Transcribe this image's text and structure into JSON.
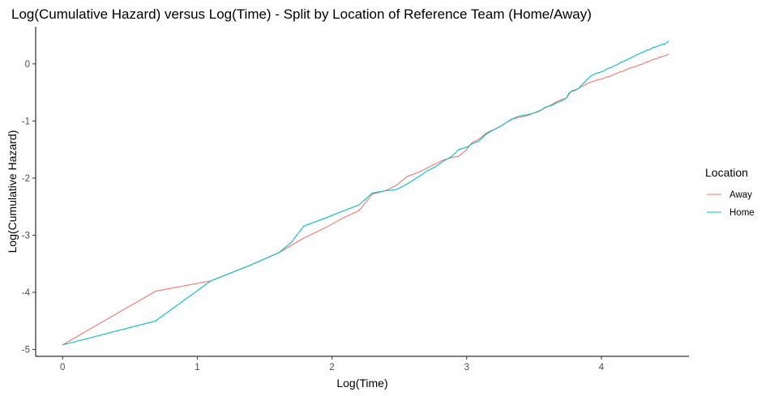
{
  "chart_data": {
    "type": "line",
    "title": "Log(Cumulative Hazard) versus Log(Time) - Split by Location of Reference Team (Home/Away)",
    "xlabel": "Log(Time)",
    "ylabel": "Log(Cumulative Hazard)",
    "xlim": [
      -0.2,
      4.65
    ],
    "ylim": [
      -5.12,
      0.65
    ],
    "xticks": [
      0,
      1,
      2,
      3,
      4
    ],
    "yticks": [
      -5,
      -4,
      -3,
      -2,
      -1,
      0
    ],
    "grid": false,
    "legend": {
      "title": "Location",
      "position": "right"
    },
    "series": [
      {
        "name": "Away",
        "color": "#F8766D",
        "points": [
          [
            0,
            -4.92
          ],
          [
            0.69,
            -3.98
          ],
          [
            1.1,
            -3.8
          ],
          [
            1.39,
            -3.53
          ],
          [
            1.61,
            -3.3
          ],
          [
            1.79,
            -3.05
          ],
          [
            1.95,
            -2.87
          ],
          [
            2.08,
            -2.7
          ],
          [
            2.2,
            -2.57
          ],
          [
            2.3,
            -2.28
          ],
          [
            2.4,
            -2.22
          ],
          [
            2.48,
            -2.12
          ],
          [
            2.56,
            -1.97
          ],
          [
            2.64,
            -1.9
          ],
          [
            2.71,
            -1.82
          ],
          [
            2.77,
            -1.75
          ],
          [
            2.83,
            -1.68
          ],
          [
            2.89,
            -1.64
          ],
          [
            2.94,
            -1.62
          ],
          [
            3.0,
            -1.5
          ],
          [
            3.04,
            -1.38
          ],
          [
            3.09,
            -1.32
          ],
          [
            3.14,
            -1.22
          ],
          [
            3.18,
            -1.17
          ],
          [
            3.22,
            -1.13
          ],
          [
            3.26,
            -1.08
          ],
          [
            3.3,
            -1.02
          ],
          [
            3.33,
            -0.97
          ],
          [
            3.37,
            -0.95
          ],
          [
            3.4,
            -0.93
          ],
          [
            3.43,
            -0.92
          ],
          [
            3.47,
            -0.89
          ],
          [
            3.5,
            -0.86
          ],
          [
            3.53,
            -0.84
          ],
          [
            3.56,
            -0.8
          ],
          [
            3.58,
            -0.77
          ],
          [
            3.61,
            -0.74
          ],
          [
            3.64,
            -0.7
          ],
          [
            3.66,
            -0.67
          ],
          [
            3.69,
            -0.64
          ],
          [
            3.71,
            -0.62
          ],
          [
            3.74,
            -0.6
          ],
          [
            3.76,
            -0.53
          ],
          [
            3.78,
            -0.47
          ],
          [
            3.81,
            -0.45
          ],
          [
            3.83,
            -0.43
          ],
          [
            3.85,
            -0.4
          ],
          [
            3.87,
            -0.38
          ],
          [
            3.89,
            -0.35
          ],
          [
            3.91,
            -0.33
          ],
          [
            3.93,
            -0.31
          ],
          [
            3.95,
            -0.3
          ],
          [
            3.97,
            -0.28
          ],
          [
            3.99,
            -0.27
          ],
          [
            4.01,
            -0.26
          ],
          [
            4.03,
            -0.24
          ],
          [
            4.04,
            -0.23
          ],
          [
            4.06,
            -0.22
          ],
          [
            4.08,
            -0.2
          ],
          [
            4.09,
            -0.19
          ],
          [
            4.11,
            -0.17
          ],
          [
            4.13,
            -0.15
          ],
          [
            4.14,
            -0.14
          ],
          [
            4.16,
            -0.13
          ],
          [
            4.17,
            -0.12
          ],
          [
            4.19,
            -0.1
          ],
          [
            4.2,
            -0.08
          ],
          [
            4.22,
            -0.07
          ],
          [
            4.23,
            -0.06
          ],
          [
            4.25,
            -0.05
          ],
          [
            4.26,
            -0.04
          ],
          [
            4.28,
            -0.02
          ],
          [
            4.29,
            -0.01
          ],
          [
            4.3,
            -0.01
          ],
          [
            4.32,
            0.02
          ],
          [
            4.33,
            0.03
          ],
          [
            4.34,
            0.03
          ],
          [
            4.36,
            0.05
          ],
          [
            4.37,
            0.06
          ],
          [
            4.38,
            0.07
          ],
          [
            4.39,
            0.08
          ],
          [
            4.41,
            0.09
          ],
          [
            4.42,
            0.1
          ],
          [
            4.43,
            0.12
          ],
          [
            4.44,
            0.12
          ],
          [
            4.45,
            0.13
          ],
          [
            4.47,
            0.14
          ],
          [
            4.48,
            0.15
          ],
          [
            4.49,
            0.16
          ],
          [
            4.5,
            0.17
          ]
        ]
      },
      {
        "name": "Home",
        "color": "#00BFC4",
        "points": [
          [
            0,
            -4.92
          ],
          [
            0.69,
            -4.5
          ],
          [
            1.1,
            -3.8
          ],
          [
            1.39,
            -3.53
          ],
          [
            1.61,
            -3.3
          ],
          [
            1.7,
            -3.12
          ],
          [
            1.79,
            -2.84
          ],
          [
            1.95,
            -2.7
          ],
          [
            2.08,
            -2.58
          ],
          [
            2.2,
            -2.47
          ],
          [
            2.3,
            -2.26
          ],
          [
            2.4,
            -2.22
          ],
          [
            2.48,
            -2.2
          ],
          [
            2.56,
            -2.1
          ],
          [
            2.64,
            -1.98
          ],
          [
            2.71,
            -1.87
          ],
          [
            2.77,
            -1.8
          ],
          [
            2.83,
            -1.7
          ],
          [
            2.89,
            -1.62
          ],
          [
            2.94,
            -1.5
          ],
          [
            3.0,
            -1.46
          ],
          [
            3.04,
            -1.4
          ],
          [
            3.09,
            -1.35
          ],
          [
            3.14,
            -1.24
          ],
          [
            3.18,
            -1.18
          ],
          [
            3.22,
            -1.13
          ],
          [
            3.26,
            -1.08
          ],
          [
            3.3,
            -1.02
          ],
          [
            3.33,
            -0.98
          ],
          [
            3.37,
            -0.93
          ],
          [
            3.4,
            -0.91
          ],
          [
            3.43,
            -0.9
          ],
          [
            3.47,
            -0.88
          ],
          [
            3.5,
            -0.86
          ],
          [
            3.53,
            -0.83
          ],
          [
            3.56,
            -0.8
          ],
          [
            3.58,
            -0.76
          ],
          [
            3.61,
            -0.74
          ],
          [
            3.64,
            -0.72
          ],
          [
            3.66,
            -0.69
          ],
          [
            3.69,
            -0.66
          ],
          [
            3.71,
            -0.64
          ],
          [
            3.74,
            -0.6
          ],
          [
            3.76,
            -0.51
          ],
          [
            3.78,
            -0.48
          ],
          [
            3.81,
            -0.46
          ],
          [
            3.83,
            -0.43
          ],
          [
            3.85,
            -0.38
          ],
          [
            3.87,
            -0.33
          ],
          [
            3.89,
            -0.28
          ],
          [
            3.91,
            -0.24
          ],
          [
            3.93,
            -0.2
          ],
          [
            3.95,
            -0.18
          ],
          [
            3.97,
            -0.16
          ],
          [
            3.99,
            -0.15
          ],
          [
            4.01,
            -0.13
          ],
          [
            4.03,
            -0.11
          ],
          [
            4.04,
            -0.09
          ],
          [
            4.06,
            -0.07
          ],
          [
            4.08,
            -0.06
          ],
          [
            4.09,
            -0.04
          ],
          [
            4.11,
            -0.02
          ],
          [
            4.13,
            0.0
          ],
          [
            4.14,
            0.02
          ],
          [
            4.16,
            0.04
          ],
          [
            4.17,
            0.05
          ],
          [
            4.19,
            0.07
          ],
          [
            4.2,
            0.09
          ],
          [
            4.22,
            0.1
          ],
          [
            4.23,
            0.12
          ],
          [
            4.25,
            0.14
          ],
          [
            4.26,
            0.16
          ],
          [
            4.28,
            0.17
          ],
          [
            4.29,
            0.19
          ],
          [
            4.3,
            0.2
          ],
          [
            4.32,
            0.21
          ],
          [
            4.33,
            0.23
          ],
          [
            4.34,
            0.24
          ],
          [
            4.36,
            0.25
          ],
          [
            4.37,
            0.27
          ],
          [
            4.38,
            0.28
          ],
          [
            4.39,
            0.29
          ],
          [
            4.41,
            0.3
          ],
          [
            4.42,
            0.31
          ],
          [
            4.43,
            0.32
          ],
          [
            4.44,
            0.33
          ],
          [
            4.45,
            0.34
          ],
          [
            4.47,
            0.35
          ],
          [
            4.48,
            0.36
          ],
          [
            4.49,
            0.38
          ],
          [
            4.5,
            0.4
          ]
        ]
      }
    ]
  }
}
